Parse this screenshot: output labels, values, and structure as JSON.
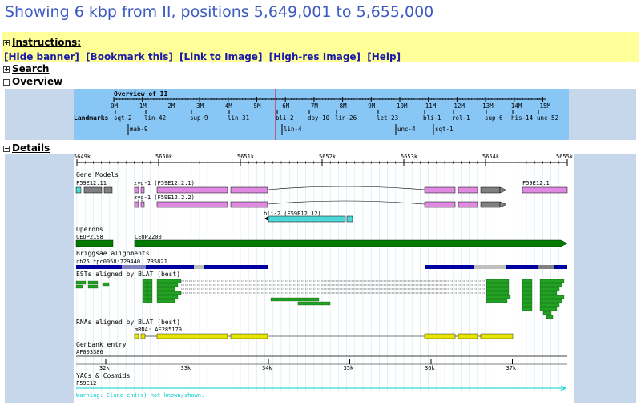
{
  "page": {
    "title": "Showing 6 kbp from II, positions 5,649,001 to 5,655,000"
  },
  "banner": {
    "instructions_label": "Instructions:",
    "links": [
      "[Hide banner]",
      "[Bookmark this]",
      "[Link to Image]",
      "[High-res Image]",
      "[Help]"
    ]
  },
  "sections": {
    "search": "Search",
    "overview": "Overview",
    "details": "Details"
  },
  "toggles": {
    "collapsed": "+",
    "expanded": "−"
  },
  "overview": {
    "title": "Overview of II",
    "ticks": [
      "0M",
      "1M",
      "2M",
      "3M",
      "4M",
      "5M",
      "6M",
      "7M",
      "8M",
      "9M",
      "10M",
      "11M",
      "12M",
      "13M",
      "14M",
      "15M"
    ],
    "landmarks_label": "Landmarks",
    "landmarks_row1": [
      "sqt-2",
      "lin-42",
      "sup-9",
      "lin-31",
      "bli-2",
      "dpy-10",
      "lin-26",
      "let-23",
      "bli-1",
      "rol-1",
      "sup-6",
      "his-14",
      "unc-52"
    ],
    "landmarks_row2": [
      "mab-9",
      "lin-4",
      "unc-4",
      "sqt-1"
    ]
  },
  "details": {
    "ruler_top": [
      "5649k",
      "5650k",
      "5651k",
      "5652k",
      "5653k",
      "5654k",
      "5655k"
    ],
    "ruler_bottom": [
      "32k",
      "33k",
      "34k",
      "35k",
      "36k",
      "37k"
    ],
    "tracks": {
      "gene_models": "Gene Models",
      "operons": "Operons",
      "briggsae": "Briggsae alignments",
      "ests": "ESTs aligned by BLAT (best)",
      "rnas": "RNAs aligned by BLAT (best)",
      "genbank": "Genbank entry",
      "yacs": "YACs & Cosmids"
    },
    "gene_labels": {
      "f59e12_11": "F59E12.11",
      "zyg1_1": "zyg-1 (F59E12.2.1)",
      "zyg1_2": "zyg-1 (F59E12.2.2)",
      "bli2": "bli-2 (F59E12.12)",
      "f59e12_1": "F59E12.1"
    },
    "operon_labels": {
      "a": "CEOP2198",
      "b": "CEOP2200"
    },
    "briggsae_label": "cb25.fpc0058:729440..735821",
    "rna_label": "mRNA: AF285179",
    "genbank_label": "AF003386",
    "cosmid_label": "F59E12",
    "warning": "Warning: Clone end(s) not known/shown."
  },
  "colors": {
    "title": "#3d5bbf",
    "banner": "#ffff99",
    "overview_bg": "#87c6f5",
    "gene_pink": "#dd8ae0",
    "gene_cyan": "#4fd6d6",
    "operon_green": "#007a00",
    "est_green": "#24a024",
    "rna_yellow": "#e6e600",
    "cosmid_cyan": "#00d0d0"
  }
}
